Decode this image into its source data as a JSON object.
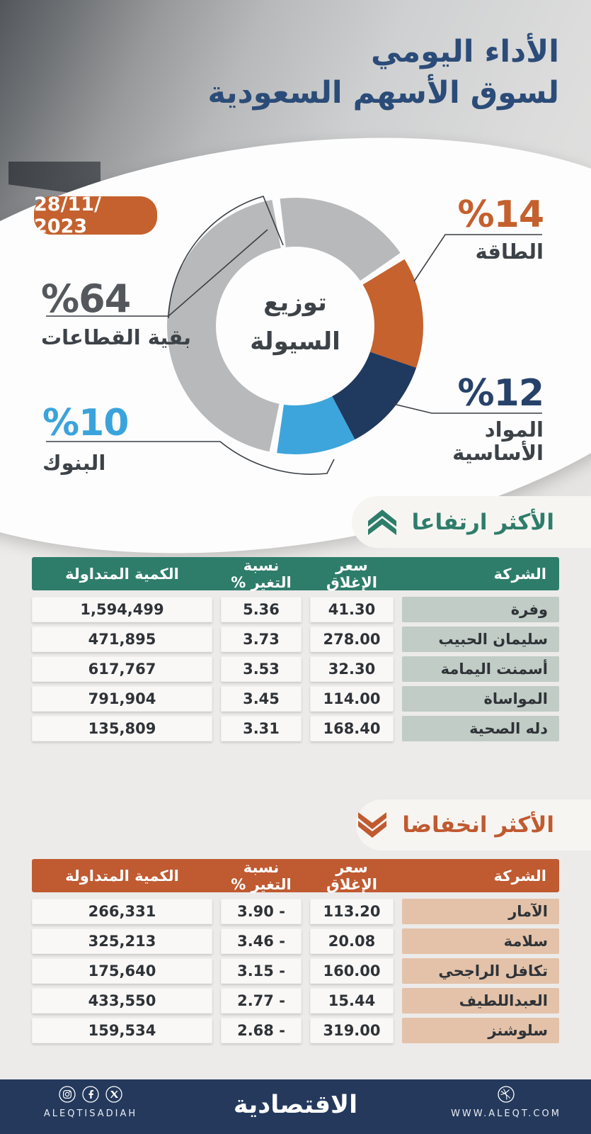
{
  "header": {
    "title_line1": "الأداء اليومي",
    "title_line2": "لسوق الأسهم السعودية",
    "date": "28/11/ 2023"
  },
  "chart_data": {
    "type": "pie",
    "title": "توزيع السيولة",
    "center_label_line1": "توزيع",
    "center_label_line2": "السيولة",
    "legend_position": "callouts",
    "segments": [
      {
        "label": "الطاقة",
        "pct": 14,
        "display": "%14",
        "color": "#c5622e"
      },
      {
        "label": "المواد الأساسية",
        "pct": 12,
        "display": "%12",
        "color": "#20395f"
      },
      {
        "label": "البنوك",
        "pct": 10,
        "display": "%10",
        "color": "#3da5dc"
      },
      {
        "label": "بقية القطاعات",
        "pct": 64,
        "display": "%64",
        "color": "#b7b9bb"
      }
    ],
    "callout_text_colors": [
      "#c4602d",
      "#27426a",
      "#3ba3db",
      "#54585c"
    ]
  },
  "sections": [
    {
      "title": "الأكثر ارتفاعا",
      "accent": "#2e7d6b",
      "direction": "up"
    },
    {
      "title": "الأكثر انخفاضا",
      "accent": "#c05a31",
      "direction": "down"
    }
  ],
  "tables": [
    {
      "row_label_bg": "#c0ccc5",
      "columns": [
        "الشركة",
        "سعر الإغلاق",
        "نسبة التغير %",
        "الكمية المتداولة"
      ],
      "rows": [
        {
          "company": "وفرة",
          "close": "41.30",
          "change": "5.36",
          "volume": "1,594,499"
        },
        {
          "company": "سليمان الحبيب",
          "close": "278.00",
          "change": "3.73",
          "volume": "471,895"
        },
        {
          "company": "أسمنت اليمامة",
          "close": "32.30",
          "change": "3.53",
          "volume": "617,767"
        },
        {
          "company": "المواساة",
          "close": "114.00",
          "change": "3.45",
          "volume": "791,904"
        },
        {
          "company": "دله الصحية",
          "close": "168.40",
          "change": "3.31",
          "volume": "135,809"
        }
      ]
    },
    {
      "row_label_bg": "#e3c2a9",
      "columns": [
        "الشركة",
        "سعر الإغلاق",
        "نسبة التغير %",
        "الكمية المتداولة"
      ],
      "rows": [
        {
          "company": "الآمار",
          "close": "113.20",
          "change": "3.90 -",
          "volume": "266,331"
        },
        {
          "company": "سلامة",
          "close": "20.08",
          "change": "3.46 -",
          "volume": "325,213"
        },
        {
          "company": "تكافل الراجحي",
          "close": "160.00",
          "change": "3.15 -",
          "volume": "175,640"
        },
        {
          "company": "العبداللطيف",
          "close": "15.44",
          "change": "2.77 -",
          "volume": "433,550"
        },
        {
          "company": "سلوشنز",
          "close": "319.00",
          "change": "2.68 -",
          "volume": "159,534"
        }
      ]
    }
  ],
  "footer": {
    "logo": "الاقتصادية",
    "social_handle": "ALEQTISADIAH",
    "website": "WWW.ALEQT.COM",
    "icons": [
      "instagram",
      "facebook",
      "x",
      "globe"
    ]
  }
}
